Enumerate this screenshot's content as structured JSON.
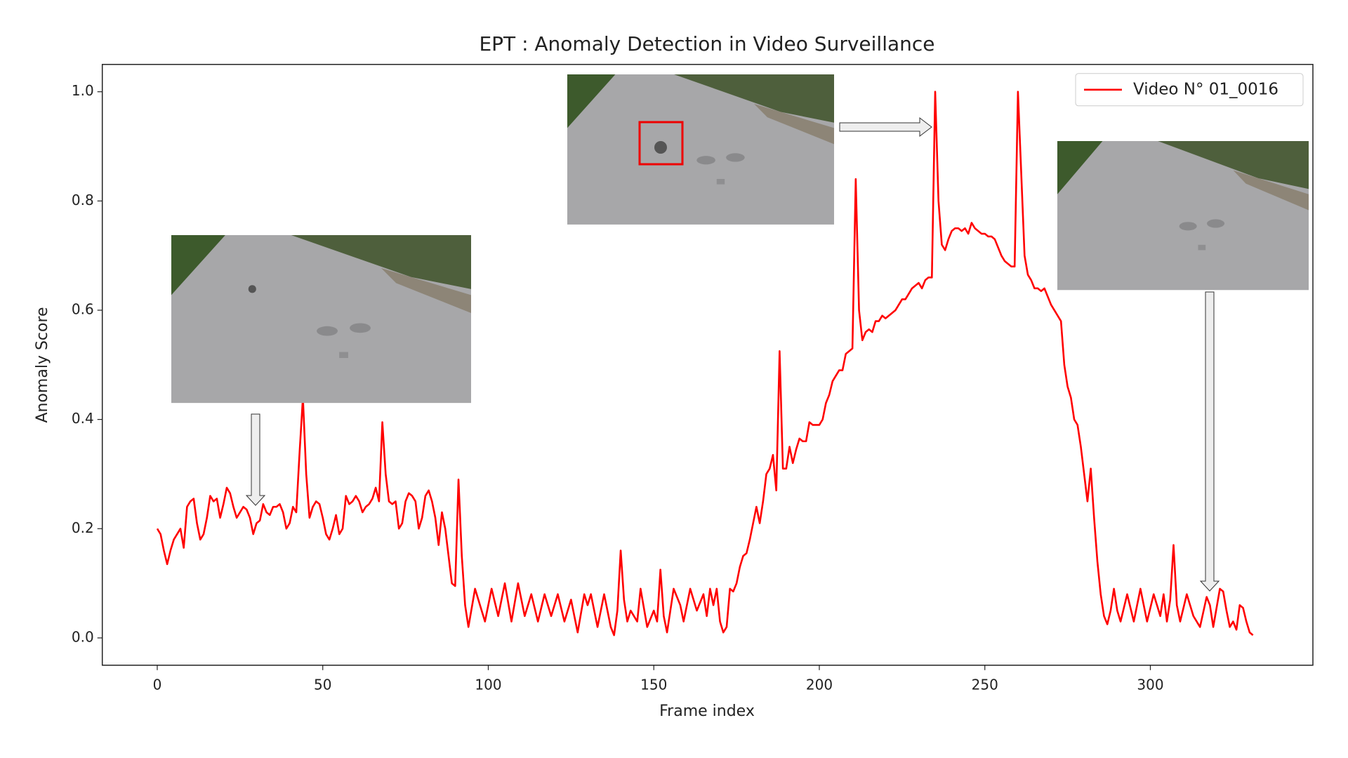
{
  "chart_data": {
    "type": "line",
    "title": "EPT : Anomaly Detection in Video Surveillance",
    "xlabel": "Frame index",
    "ylabel": "Anomaly Score",
    "xlim": [
      -16.6,
      349.1
    ],
    "ylim": [
      -0.05,
      1.05
    ],
    "xticks": [
      0,
      50,
      100,
      150,
      200,
      250,
      300
    ],
    "yticks": [
      {
        "value": 0,
        "label": "0.0"
      },
      0.2,
      0.4,
      0.6,
      0.8,
      {
        "value": 1,
        "label": "1.0"
      }
    ],
    "legend": "upper right",
    "x": [
      0,
      1,
      2,
      3,
      4,
      5,
      6,
      7,
      8,
      9,
      10,
      11,
      12,
      13,
      14,
      15,
      16,
      17,
      18,
      19,
      20,
      21,
      22,
      23,
      24,
      25,
      26,
      27,
      28,
      29,
      30,
      31,
      32,
      33,
      34,
      35,
      36,
      37,
      38,
      39,
      40,
      41,
      42,
      43,
      44,
      45,
      46,
      47,
      48,
      49,
      50,
      51,
      52,
      53,
      54,
      55,
      56,
      57,
      58,
      59,
      60,
      61,
      62,
      63,
      64,
      65,
      66,
      67,
      68,
      69,
      70,
      71,
      72,
      73,
      74,
      75,
      76,
      77,
      78,
      79,
      80,
      81,
      82,
      83,
      84,
      85,
      86,
      87,
      88,
      89,
      90,
      91,
      92,
      93,
      94,
      96,
      98,
      99,
      101,
      103,
      105,
      107,
      109,
      111,
      113,
      115,
      117,
      119,
      121,
      123,
      125,
      127,
      129,
      130,
      131,
      133,
      135,
      137,
      138,
      139,
      140,
      141,
      142,
      143,
      145,
      146,
      148,
      150,
      151,
      152,
      153,
      154,
      156,
      158,
      159,
      161,
      163,
      165,
      166,
      167,
      168,
      169,
      170,
      171,
      172,
      173,
      174,
      175,
      176,
      177,
      178,
      179,
      180,
      181,
      182,
      183,
      184,
      185,
      186,
      187,
      188,
      189,
      190,
      191,
      192,
      193,
      194,
      195,
      196,
      197,
      198,
      199,
      200,
      201,
      202,
      203,
      204,
      205,
      206,
      207,
      208,
      209,
      210,
      211,
      212,
      213,
      214,
      215,
      216,
      217,
      218,
      219,
      220,
      221,
      222,
      223,
      224,
      225,
      226,
      227,
      228,
      229,
      230,
      231,
      232,
      233,
      234,
      235,
      236,
      237,
      238,
      239,
      240,
      241,
      242,
      243,
      244,
      245,
      246,
      247,
      248,
      249,
      250,
      251,
      252,
      253,
      254,
      255,
      256,
      257,
      258,
      259,
      260,
      261,
      262,
      263,
      264,
      265,
      266,
      267,
      268,
      269,
      270,
      271,
      272,
      273,
      274,
      275,
      276,
      277,
      278,
      279,
      280,
      281,
      282,
      283,
      284,
      285,
      286,
      287,
      288,
      289,
      290,
      291,
      293,
      295,
      297,
      299,
      301,
      303,
      304,
      305,
      306,
      307,
      308,
      309,
      311,
      313,
      315,
      317,
      318,
      319,
      321,
      322,
      323,
      324,
      325,
      326,
      327,
      328,
      329,
      330,
      331
    ],
    "series": [
      {
        "name": "Video N° 01_0016",
        "color": "#ff0000",
        "values": [
          0.2,
          0.19,
          0.16,
          0.135,
          0.16,
          0.18,
          0.19,
          0.2,
          0.165,
          0.24,
          0.25,
          0.255,
          0.21,
          0.18,
          0.19,
          0.22,
          0.26,
          0.25,
          0.255,
          0.22,
          0.245,
          0.275,
          0.265,
          0.24,
          0.22,
          0.23,
          0.24,
          0.235,
          0.22,
          0.19,
          0.21,
          0.215,
          0.245,
          0.23,
          0.225,
          0.24,
          0.24,
          0.245,
          0.23,
          0.2,
          0.21,
          0.24,
          0.23,
          0.34,
          0.44,
          0.3,
          0.22,
          0.24,
          0.25,
          0.245,
          0.22,
          0.19,
          0.18,
          0.2,
          0.225,
          0.19,
          0.2,
          0.26,
          0.245,
          0.25,
          0.26,
          0.25,
          0.23,
          0.24,
          0.245,
          0.255,
          0.275,
          0.25,
          0.395,
          0.3,
          0.25,
          0.245,
          0.25,
          0.2,
          0.21,
          0.25,
          0.265,
          0.26,
          0.25,
          0.2,
          0.22,
          0.26,
          0.27,
          0.25,
          0.22,
          0.17,
          0.23,
          0.2,
          0.15,
          0.1,
          0.095,
          0.29,
          0.15,
          0.06,
          0.02,
          0.09,
          0.05,
          0.03,
          0.09,
          0.04,
          0.1,
          0.03,
          0.1,
          0.04,
          0.08,
          0.03,
          0.08,
          0.04,
          0.08,
          0.03,
          0.07,
          0.01,
          0.08,
          0.06,
          0.08,
          0.02,
          0.08,
          0.02,
          0.005,
          0.05,
          0.16,
          0.07,
          0.03,
          0.05,
          0.03,
          0.09,
          0.02,
          0.05,
          0.03,
          0.125,
          0.04,
          0.01,
          0.09,
          0.06,
          0.03,
          0.09,
          0.05,
          0.08,
          0.04,
          0.09,
          0.06,
          0.09,
          0.03,
          0.01,
          0.02,
          0.09,
          0.085,
          0.1,
          0.13,
          0.15,
          0.155,
          0.18,
          0.21,
          0.24,
          0.21,
          0.25,
          0.3,
          0.31,
          0.335,
          0.27,
          0.525,
          0.31,
          0.31,
          0.35,
          0.32,
          0.345,
          0.365,
          0.36,
          0.36,
          0.395,
          0.39,
          0.39,
          0.39,
          0.4,
          0.43,
          0.445,
          0.47,
          0.48,
          0.49,
          0.49,
          0.52,
          0.525,
          0.53,
          0.84,
          0.6,
          0.545,
          0.56,
          0.565,
          0.56,
          0.58,
          0.58,
          0.59,
          0.585,
          0.59,
          0.595,
          0.6,
          0.61,
          0.62,
          0.62,
          0.63,
          0.64,
          0.645,
          0.65,
          0.64,
          0.655,
          0.66,
          0.66,
          1.0,
          0.8,
          0.72,
          0.71,
          0.73,
          0.745,
          0.75,
          0.75,
          0.745,
          0.75,
          0.74,
          0.76,
          0.75,
          0.745,
          0.74,
          0.74,
          0.735,
          0.735,
          0.73,
          0.715,
          0.7,
          0.69,
          0.685,
          0.68,
          0.68,
          1.0,
          0.85,
          0.7,
          0.665,
          0.655,
          0.64,
          0.64,
          0.635,
          0.64,
          0.625,
          0.61,
          0.6,
          0.59,
          0.58,
          0.5,
          0.46,
          0.44,
          0.4,
          0.39,
          0.35,
          0.3,
          0.25,
          0.31,
          0.22,
          0.14,
          0.08,
          0.04,
          0.025,
          0.05,
          0.09,
          0.05,
          0.03,
          0.08,
          0.03,
          0.09,
          0.03,
          0.08,
          0.04,
          0.08,
          0.03,
          0.07,
          0.17,
          0.06,
          0.03,
          0.08,
          0.04,
          0.02,
          0.075,
          0.06,
          0.02,
          0.09,
          0.085,
          0.05,
          0.02,
          0.03,
          0.015,
          0.06,
          0.055,
          0.03,
          0.01,
          0.005
        ]
      }
    ]
  }
}
